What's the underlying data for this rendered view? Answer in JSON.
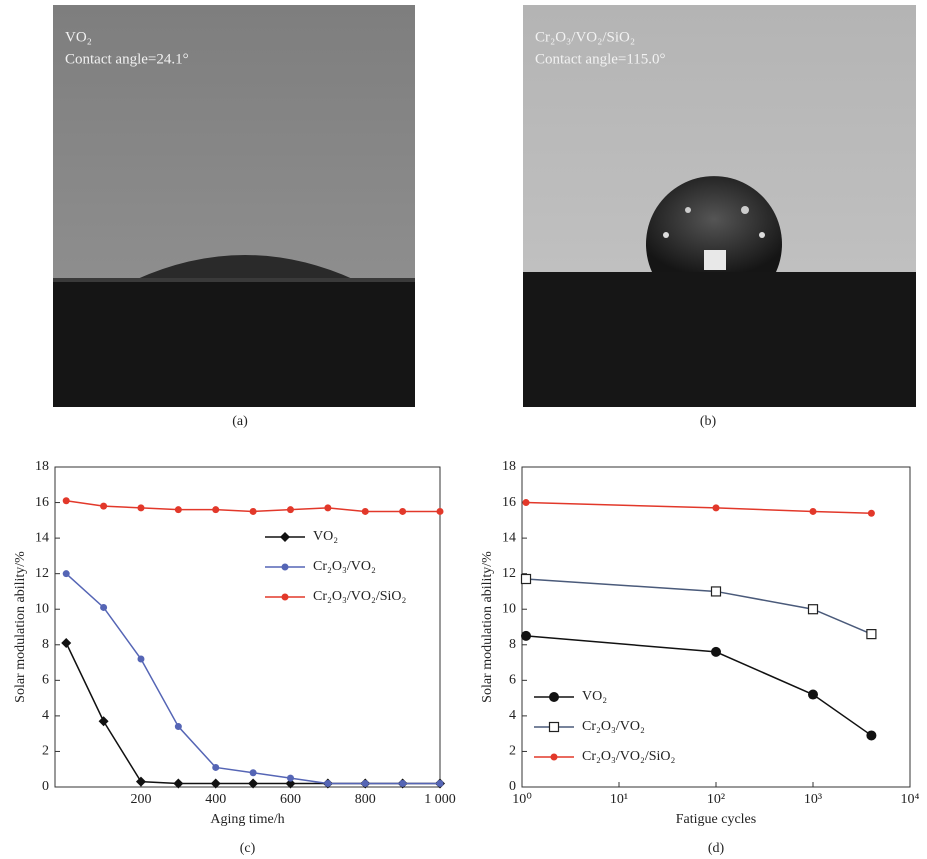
{
  "photos": [
    {
      "text": [
        "VO₂",
        "Contact angle=24.1°"
      ],
      "caption": "(a)"
    },
    {
      "text": [
        "Cr₂O₃/VO₂/SiO₂",
        "Contact angle=115.0°"
      ],
      "caption": "(b)"
    }
  ],
  "chart_data": [
    {
      "type": "line",
      "caption": "(c)",
      "xlabel": "Aging time/h",
      "ylabel": "Solar modulation ability/%",
      "x": [
        0,
        100,
        200,
        300,
        400,
        500,
        600,
        700,
        800,
        900,
        1000
      ],
      "xlim": [
        -30,
        1000
      ],
      "xticks": [
        200,
        400,
        600,
        800,
        {
          "value": 1000,
          "label": "1 000"
        }
      ],
      "ylim": [
        0,
        18
      ],
      "yticks": [
        0,
        2,
        4,
        6,
        8,
        10,
        12,
        14,
        16,
        18
      ],
      "legend": "center right",
      "series": [
        {
          "name": "VO₂",
          "color": "#111111",
          "marker": "diamond",
          "values": [
            8.1,
            3.7,
            0.3,
            0.2,
            0.2,
            0.2,
            0.2,
            0.2,
            0.2,
            0.2,
            0.2
          ]
        },
        {
          "name": "Cr₂O₃/VO₂",
          "color": "#5565b5",
          "marker": "circle",
          "values": [
            12.0,
            10.1,
            7.2,
            3.4,
            1.1,
            0.8,
            0.5,
            0.2,
            0.2,
            0.2,
            0.2
          ]
        },
        {
          "name": "Cr₂O₃/VO₂/SiO₂",
          "color": "#e2382a",
          "marker": "circle",
          "values": [
            16.1,
            15.8,
            15.7,
            15.6,
            15.6,
            15.5,
            15.6,
            15.7,
            15.5,
            15.5,
            15.5
          ]
        }
      ]
    },
    {
      "type": "line",
      "caption": "(d)",
      "xlabel": "Fatigue cycles",
      "ylabel": "Solar modulation ability/%",
      "x": [
        1.1,
        100,
        1000,
        4000
      ],
      "xscale": "log",
      "xlim": [
        1,
        10000
      ],
      "xticks": [
        {
          "value": 1,
          "label": "10⁰"
        },
        {
          "value": 10,
          "label": "10¹"
        },
        {
          "value": 100,
          "label": "10²"
        },
        {
          "value": 1000,
          "label": "10³"
        },
        {
          "value": 10000,
          "label": "10⁴"
        }
      ],
      "ylim": [
        0,
        18
      ],
      "yticks": [
        0,
        2,
        4,
        6,
        8,
        10,
        12,
        14,
        16,
        18
      ],
      "legend": "lower left",
      "series": [
        {
          "name": "VO₂",
          "color": "#111111",
          "marker": "circle-large",
          "values": [
            8.5,
            7.6,
            5.2,
            2.9
          ]
        },
        {
          "name": "Cr₂O₃/VO₂",
          "color": "#4a5a7a",
          "marker": "square-open",
          "values": [
            11.7,
            11.0,
            10.0,
            8.6
          ]
        },
        {
          "name": "Cr₂O₃/VO₂/SiO₂",
          "color": "#e2382a",
          "marker": "circle",
          "values": [
            16.0,
            15.7,
            15.5,
            15.4
          ]
        }
      ]
    }
  ]
}
